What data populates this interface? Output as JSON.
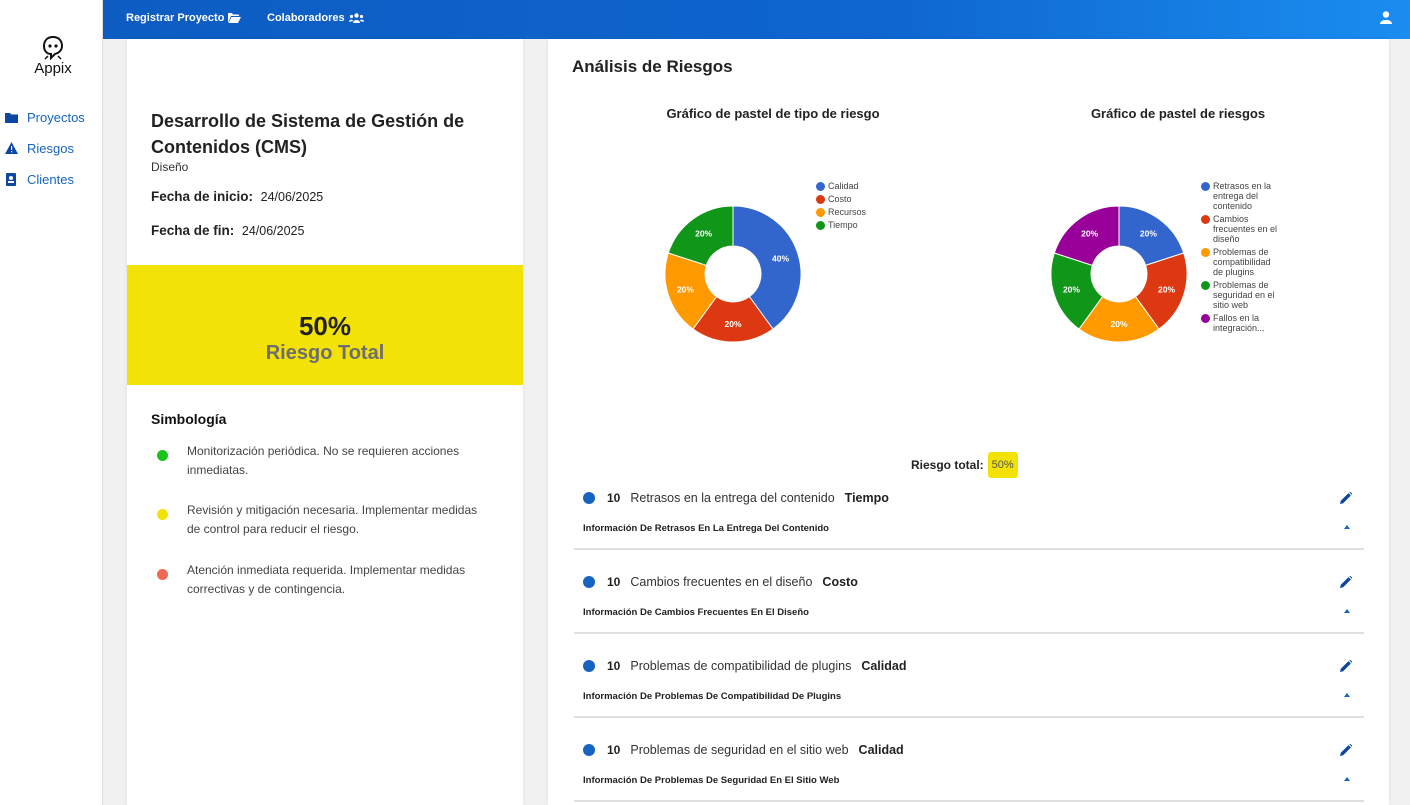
{
  "sidebar": {
    "logo_text": "Appix",
    "items": [
      {
        "label": "Proyectos",
        "icon": "folder-icon"
      },
      {
        "label": "Riesgos",
        "icon": "warning-icon"
      },
      {
        "label": "Clientes",
        "icon": "contact-card-icon"
      }
    ]
  },
  "topbar": {
    "register_label": "Registrar Proyecto",
    "collaborators_label": "Colaboradores",
    "user_icon": "user-icon"
  },
  "project": {
    "title": "Desarrollo de Sistema de Gestión de Contenidos (CMS)",
    "subtitle": "Diseño",
    "start_label": "Fecha de inicio:",
    "start_value": "24/06/2025",
    "end_label": "Fecha de fin:",
    "end_value": "24/06/2025",
    "risk_pct": "50%",
    "risk_label": "Riesgo Total"
  },
  "symbology": {
    "title": "Simbología",
    "items": [
      {
        "color": "#18c418",
        "text": "Monitorización periódica. No se requieren acciones inmediatas."
      },
      {
        "color": "#f2e205",
        "text": "Revisión y mitigación necesaria. Implementar medidas de control para reducir el riesgo."
      },
      {
        "color": "#ee6a55",
        "text": "Atención inmediata requerida. Implementar medidas correctivas y de contingencia."
      }
    ]
  },
  "analysis": {
    "title": "Análisis de Riesgos",
    "total_label": "Riesgo total:",
    "total_value": "50%"
  },
  "chart_data": [
    {
      "type": "pie",
      "title": "Gráfico de pastel de tipo de riesgo",
      "categories": [
        "Calidad",
        "Costo",
        "Recursos",
        "Tiempo"
      ],
      "values": [
        40,
        20,
        20,
        20
      ],
      "labels": [
        "40%",
        "20%",
        "20%",
        "20%"
      ],
      "colors": [
        "#3366cc",
        "#dc3912",
        "#ff9900",
        "#109618"
      ],
      "legend_position": "right"
    },
    {
      "type": "pie",
      "title": "Gráfico de pastel de riesgos",
      "categories": [
        "Retrasos en la entrega del contenido",
        "Cambios frecuentes en el diseño",
        "Problemas de compatibilidad de plugins",
        "Problemas de seguridad en el sitio web",
        "Fallos en la integración..."
      ],
      "values": [
        20,
        20,
        20,
        20,
        20
      ],
      "labels": [
        "20%",
        "20%",
        "20%",
        "20%",
        "20%"
      ],
      "colors": [
        "#3366cc",
        "#dc3912",
        "#ff9900",
        "#109618",
        "#990099"
      ],
      "legend_position": "right"
    }
  ],
  "risks": [
    {
      "score": "10",
      "name": "Retrasos en la entrega del contenido",
      "type": "Tiempo",
      "info": "Información De Retrasos En La Entrega Del Contenido"
    },
    {
      "score": "10",
      "name": "Cambios frecuentes en el diseño",
      "type": "Costo",
      "info": "Información De Cambios Frecuentes En El Diseño"
    },
    {
      "score": "10",
      "name": "Problemas de compatibilidad de plugins",
      "type": "Calidad",
      "info": "Información De Problemas De Compatibilidad De Plugins"
    },
    {
      "score": "10",
      "name": "Problemas de seguridad en el sitio web",
      "type": "Calidad",
      "info": "Información De Problemas De Seguridad En El Sitio Web"
    }
  ]
}
